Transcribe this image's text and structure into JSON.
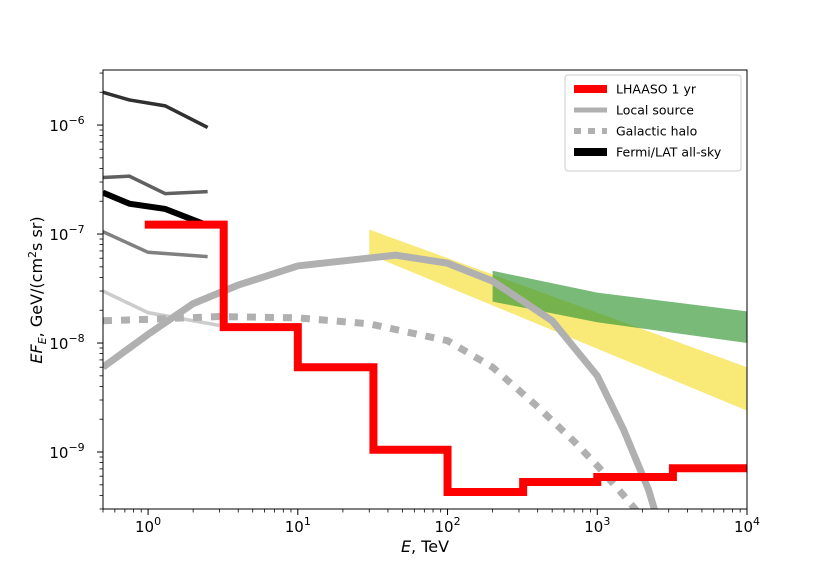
{
  "chart_data": {
    "type": "line",
    "xscale": "log",
    "yscale": "log",
    "xlim": [
      0.5,
      10000
    ],
    "ylim": [
      3e-10,
      3.2e-06
    ],
    "xlabel": "E, TeV",
    "xlabel_parts": {
      "var": "E",
      "rest": ", TeV"
    },
    "ylabel": "EF_E, GeV/(cm^2 s sr)",
    "ylabel_parts": {
      "var": "EF",
      "sub": "E",
      "rest1": ", GeV/(cm",
      "sup": "2",
      "rest2": "s sr)"
    },
    "x_ticks": [
      {
        "value": 1,
        "base": "10",
        "exp": "0"
      },
      {
        "value": 10,
        "base": "10",
        "exp": "1"
      },
      {
        "value": 100,
        "base": "10",
        "exp": "2"
      },
      {
        "value": 1000,
        "base": "10",
        "exp": "3"
      },
      {
        "value": 10000,
        "base": "10",
        "exp": "4"
      }
    ],
    "y_ticks": [
      {
        "value": 1e-09,
        "base": "10",
        "exp": "−9"
      },
      {
        "value": 1e-08,
        "base": "10",
        "exp": "−8"
      },
      {
        "value": 1e-07,
        "base": "10",
        "exp": "−7"
      },
      {
        "value": 1e-06,
        "base": "10",
        "exp": "−6"
      }
    ],
    "legend_position": "top-right",
    "legend": [
      {
        "label": "LHAASO 1 yr",
        "color": "#ff0000",
        "style": "solid-thick"
      },
      {
        "label": "Local source",
        "color": "#b0b0b0",
        "style": "solid"
      },
      {
        "label": "Galactic halo",
        "color": "#b0b0b0",
        "style": "dotted"
      },
      {
        "label": "Fermi/LAT all-sky",
        "color": "#000000",
        "style": "solid-thick"
      }
    ],
    "bands": [
      {
        "name": "yellow",
        "color": "#f7e24a",
        "opacity": 0.75,
        "upper": [
          [
            30,
            1.1e-07
          ],
          [
            10000,
            6e-09
          ]
        ],
        "lower": [
          [
            30,
            6.5e-08
          ],
          [
            10000,
            2.4e-09
          ]
        ]
      },
      {
        "name": "green",
        "color": "#3a9a3a",
        "opacity": 0.68,
        "upper": [
          [
            200,
            4.6e-08
          ],
          [
            1000,
            2.9e-08
          ],
          [
            10000,
            1.95e-08
          ]
        ],
        "lower": [
          [
            200,
            2.4e-08
          ],
          [
            1000,
            1.55e-08
          ],
          [
            10000,
            1e-08
          ]
        ]
      }
    ],
    "series": [
      {
        "name": "Fermi/LAT all-sky",
        "color": "#000000",
        "width": 6,
        "style": "solid",
        "points": [
          [
            0.5,
            2.4e-07
          ],
          [
            0.75,
            1.9e-07
          ],
          [
            1.3,
            1.7e-07
          ],
          [
            2.5,
            1.2e-07
          ]
        ]
      },
      {
        "color": "#303030",
        "width": 3.5,
        "style": "solid",
        "points": [
          [
            0.5,
            2e-06
          ],
          [
            0.75,
            1.7e-06
          ],
          [
            1.3,
            1.5e-06
          ],
          [
            2.5,
            9.5e-07
          ]
        ]
      },
      {
        "color": "#606060",
        "width": 3.5,
        "style": "solid",
        "points": [
          [
            0.5,
            3.3e-07
          ],
          [
            0.75,
            3.4e-07
          ],
          [
            1.3,
            2.35e-07
          ],
          [
            2.5,
            2.45e-07
          ]
        ]
      },
      {
        "color": "#808080",
        "width": 3.5,
        "style": "solid",
        "points": [
          [
            0.5,
            1.05e-07
          ],
          [
            1.0,
            6.8e-08
          ],
          [
            2.5,
            6.2e-08
          ]
        ]
      },
      {
        "color": "#cccccc",
        "width": 3.5,
        "style": "solid",
        "points": [
          [
            0.5,
            3e-08
          ],
          [
            1.0,
            1.9e-08
          ],
          [
            2.0,
            1.6e-08
          ],
          [
            3.0,
            1.45e-08
          ]
        ]
      },
      {
        "name": "Local source",
        "color": "#b0b0b0",
        "width": 7,
        "style": "solid",
        "points": [
          [
            0.5,
            6e-09
          ],
          [
            1.0,
            1.2e-08
          ],
          [
            2.0,
            2.3e-08
          ],
          [
            4.0,
            3.4e-08
          ],
          [
            10,
            5.1e-08
          ],
          [
            45,
            6.4e-08
          ],
          [
            100,
            5.4e-08
          ],
          [
            200,
            3.7e-08
          ],
          [
            500,
            1.6e-08
          ],
          [
            1000,
            5e-09
          ],
          [
            1500,
            1.6e-09
          ],
          [
            2200,
            4.5e-10
          ],
          [
            2800,
            1.5e-10
          ]
        ]
      },
      {
        "name": "Galactic halo",
        "color": "#b0b0b0",
        "width": 7,
        "style": "dotted",
        "points": [
          [
            0.5,
            1.6e-08
          ],
          [
            1.0,
            1.65e-08
          ],
          [
            3.0,
            1.75e-08
          ],
          [
            10,
            1.7e-08
          ],
          [
            30,
            1.5e-08
          ],
          [
            100,
            1.05e-08
          ],
          [
            200,
            6e-09
          ],
          [
            400,
            2.6e-09
          ],
          [
            700,
            1.25e-09
          ],
          [
            1000,
            7.5e-10
          ],
          [
            1500,
            4e-10
          ],
          [
            2000,
            2.5e-10
          ]
        ]
      },
      {
        "name": "LHAASO 1 yr",
        "color": "#ff0000",
        "width": 8,
        "style": "step",
        "points": [
          [
            0.95,
            1.22e-07
          ],
          [
            3.2,
            1.22e-07
          ],
          [
            3.2,
            1.4e-08
          ],
          [
            10,
            1.4e-08
          ],
          [
            10,
            6e-09
          ],
          [
            32,
            6e-09
          ],
          [
            32,
            1.05e-09
          ],
          [
            100,
            1.05e-09
          ],
          [
            100,
            4.3e-10
          ],
          [
            320,
            4.3e-10
          ],
          [
            320,
            5.3e-10
          ],
          [
            1000,
            5.3e-10
          ],
          [
            1000,
            5.9e-10
          ],
          [
            3200,
            5.9e-10
          ],
          [
            3200,
            7.1e-10
          ],
          [
            10000,
            7.1e-10
          ]
        ]
      }
    ]
  }
}
